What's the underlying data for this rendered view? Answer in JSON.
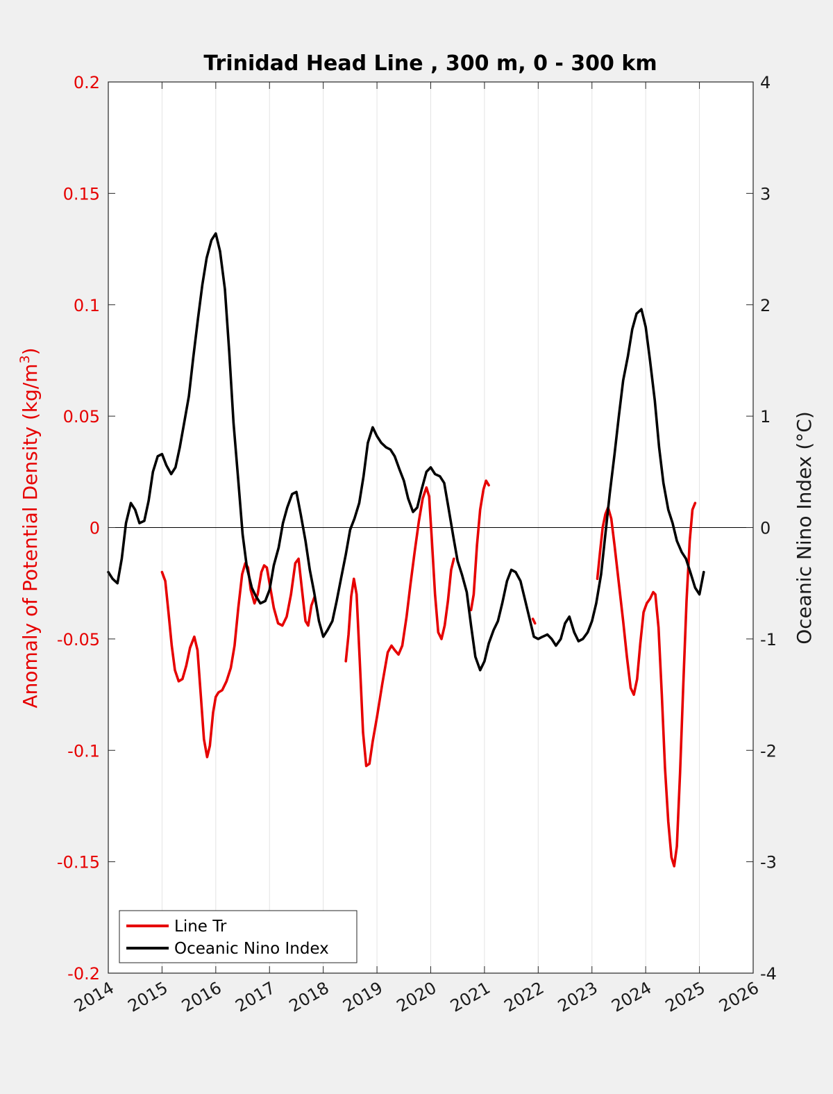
{
  "chart_data": {
    "type": "line",
    "title": "Trinidad Head Line , 300 m, 0 - 300 km",
    "ylabel_left_main": "Anomaly of Potential Density (kg/m",
    "ylabel_left_sup": "3",
    "ylabel_left_close": ")",
    "ylabel_right": "Oceanic Nino Index (°C)",
    "xlim": [
      2014,
      2026
    ],
    "ylim_left": [
      -0.2,
      0.2
    ],
    "ylim_right": [
      -4,
      4
    ],
    "xticks": [
      "2014",
      "2015",
      "2016",
      "2017",
      "2018",
      "2019",
      "2020",
      "2021",
      "2022",
      "2023",
      "2024",
      "2025",
      "2026"
    ],
    "yticks_left": [
      "0.2",
      "0.15",
      "0.1",
      "0.05",
      "0",
      "-0.05",
      "-0.1",
      "-0.15",
      "-0.2"
    ],
    "yticks_right": [
      "4",
      "3",
      "2",
      "1",
      "0",
      "-1",
      "-2",
      "-3",
      "-4"
    ],
    "grid": "vertical",
    "zero_line": true,
    "legend_position": "bottom-left",
    "colors": {
      "line_tr": "#e60000",
      "oni": "#000000"
    },
    "series": [
      {
        "name": "Line Tr",
        "axis": "left",
        "segments": [
          [
            [
              2015.0,
              -0.02
            ],
            [
              2015.06,
              -0.024
            ],
            [
              2015.12,
              -0.038
            ],
            [
              2015.18,
              -0.053
            ],
            [
              2015.24,
              -0.064
            ],
            [
              2015.31,
              -0.069
            ],
            [
              2015.38,
              -0.068
            ],
            [
              2015.45,
              -0.062
            ],
            [
              2015.52,
              -0.054
            ],
            [
              2015.6,
              -0.049
            ],
            [
              2015.66,
              -0.055
            ],
            [
              2015.72,
              -0.075
            ],
            [
              2015.78,
              -0.095
            ],
            [
              2015.84,
              -0.103
            ],
            [
              2015.89,
              -0.098
            ],
            [
              2015.95,
              -0.083
            ],
            [
              2016.0,
              -0.076
            ],
            [
              2016.05,
              -0.074
            ],
            [
              2016.12,
              -0.073
            ],
            [
              2016.2,
              -0.069
            ],
            [
              2016.28,
              -0.063
            ],
            [
              2016.35,
              -0.053
            ],
            [
              2016.42,
              -0.036
            ],
            [
              2016.49,
              -0.021
            ],
            [
              2016.55,
              -0.016
            ],
            [
              2016.6,
              -0.018
            ],
            [
              2016.65,
              -0.028
            ],
            [
              2016.72,
              -0.034
            ],
            [
              2016.78,
              -0.03
            ],
            [
              2016.85,
              -0.02
            ],
            [
              2016.9,
              -0.017
            ],
            [
              2016.95,
              -0.018
            ],
            [
              2017.0,
              -0.025
            ],
            [
              2017.08,
              -0.036
            ],
            [
              2017.16,
              -0.043
            ],
            [
              2017.24,
              -0.044
            ],
            [
              2017.32,
              -0.04
            ],
            [
              2017.4,
              -0.03
            ],
            [
              2017.48,
              -0.016
            ],
            [
              2017.54,
              -0.014
            ],
            [
              2017.6,
              -0.027
            ],
            [
              2017.67,
              -0.042
            ],
            [
              2017.72,
              -0.044
            ],
            [
              2017.78,
              -0.035
            ],
            [
              2017.84,
              -0.031
            ]
          ],
          [
            [
              2018.42,
              -0.06
            ],
            [
              2018.47,
              -0.048
            ],
            [
              2018.52,
              -0.031
            ],
            [
              2018.57,
              -0.023
            ],
            [
              2018.62,
              -0.03
            ],
            [
              2018.68,
              -0.06
            ],
            [
              2018.74,
              -0.092
            ],
            [
              2018.8,
              -0.107
            ],
            [
              2018.86,
              -0.106
            ],
            [
              2018.92,
              -0.096
            ],
            [
              2019.0,
              -0.085
            ],
            [
              2019.1,
              -0.07
            ],
            [
              2019.2,
              -0.056
            ],
            [
              2019.27,
              -0.053
            ],
            [
              2019.33,
              -0.055
            ],
            [
              2019.4,
              -0.057
            ],
            [
              2019.47,
              -0.053
            ],
            [
              2019.55,
              -0.04
            ],
            [
              2019.62,
              -0.026
            ],
            [
              2019.7,
              -0.011
            ],
            [
              2019.78,
              0.003
            ],
            [
              2019.85,
              0.013
            ],
            [
              2019.92,
              0.018
            ],
            [
              2019.97,
              0.014
            ],
            [
              2020.02,
              -0.005
            ],
            [
              2020.08,
              -0.03
            ],
            [
              2020.14,
              -0.047
            ],
            [
              2020.2,
              -0.05
            ],
            [
              2020.26,
              -0.044
            ],
            [
              2020.32,
              -0.033
            ],
            [
              2020.38,
              -0.019
            ],
            [
              2020.43,
              -0.014
            ]
          ],
          [
            [
              2020.75,
              -0.037
            ],
            [
              2020.8,
              -0.03
            ],
            [
              2020.86,
              -0.008
            ],
            [
              2020.92,
              0.008
            ],
            [
              2020.98,
              0.017
            ],
            [
              2021.03,
              0.021
            ],
            [
              2021.08,
              0.019
            ]
          ],
          [
            [
              2021.9,
              -0.041
            ],
            [
              2021.94,
              -0.043
            ]
          ],
          [
            [
              2023.1,
              -0.023
            ],
            [
              2023.15,
              -0.011
            ],
            [
              2023.2,
              0.0
            ],
            [
              2023.25,
              0.006
            ],
            [
              2023.3,
              0.009
            ],
            [
              2023.36,
              0.004
            ],
            [
              2023.42,
              -0.008
            ],
            [
              2023.5,
              -0.025
            ],
            [
              2023.58,
              -0.042
            ],
            [
              2023.65,
              -0.058
            ],
            [
              2023.72,
              -0.072
            ],
            [
              2023.78,
              -0.075
            ],
            [
              2023.84,
              -0.068
            ],
            [
              2023.9,
              -0.052
            ],
            [
              2023.96,
              -0.038
            ],
            [
              2024.02,
              -0.034
            ],
            [
              2024.08,
              -0.032
            ],
            [
              2024.14,
              -0.029
            ],
            [
              2024.18,
              -0.03
            ],
            [
              2024.24,
              -0.045
            ],
            [
              2024.3,
              -0.075
            ],
            [
              2024.36,
              -0.108
            ],
            [
              2024.42,
              -0.132
            ],
            [
              2024.48,
              -0.148
            ],
            [
              2024.53,
              -0.152
            ],
            [
              2024.58,
              -0.143
            ],
            [
              2024.64,
              -0.11
            ],
            [
              2024.7,
              -0.07
            ],
            [
              2024.76,
              -0.033
            ],
            [
              2024.82,
              -0.006
            ],
            [
              2024.87,
              0.008
            ],
            [
              2024.92,
              0.011
            ]
          ]
        ]
      },
      {
        "name": "Oceanic Nino Index",
        "axis": "right",
        "segments": [
          [
            [
              2014.0,
              -0.4
            ],
            [
              2014.08,
              -0.46
            ],
            [
              2014.17,
              -0.5
            ],
            [
              2014.25,
              -0.28
            ],
            [
              2014.33,
              0.04
            ],
            [
              2014.42,
              0.22
            ],
            [
              2014.5,
              0.16
            ],
            [
              2014.58,
              0.04
            ],
            [
              2014.67,
              0.06
            ],
            [
              2014.75,
              0.24
            ],
            [
              2014.83,
              0.5
            ],
            [
              2014.92,
              0.64
            ],
            [
              2015.0,
              0.66
            ],
            [
              2015.08,
              0.56
            ],
            [
              2015.17,
              0.48
            ],
            [
              2015.25,
              0.54
            ],
            [
              2015.33,
              0.72
            ],
            [
              2015.42,
              0.96
            ],
            [
              2015.5,
              1.18
            ],
            [
              2015.58,
              1.52
            ],
            [
              2015.67,
              1.88
            ],
            [
              2015.75,
              2.18
            ],
            [
              2015.83,
              2.42
            ],
            [
              2015.92,
              2.58
            ],
            [
              2016.0,
              2.64
            ],
            [
              2016.08,
              2.48
            ],
            [
              2016.17,
              2.14
            ],
            [
              2016.25,
              1.58
            ],
            [
              2016.33,
              0.94
            ],
            [
              2016.42,
              0.42
            ],
            [
              2016.5,
              -0.06
            ],
            [
              2016.58,
              -0.36
            ],
            [
              2016.67,
              -0.54
            ],
            [
              2016.75,
              -0.62
            ],
            [
              2016.83,
              -0.68
            ],
            [
              2016.92,
              -0.66
            ],
            [
              2017.0,
              -0.56
            ],
            [
              2017.08,
              -0.34
            ],
            [
              2017.17,
              -0.18
            ],
            [
              2017.25,
              0.04
            ],
            [
              2017.33,
              0.18
            ],
            [
              2017.42,
              0.3
            ],
            [
              2017.5,
              0.32
            ],
            [
              2017.58,
              0.12
            ],
            [
              2017.67,
              -0.12
            ],
            [
              2017.75,
              -0.38
            ],
            [
              2017.83,
              -0.58
            ],
            [
              2017.92,
              -0.84
            ],
            [
              2018.0,
              -0.98
            ],
            [
              2018.08,
              -0.92
            ],
            [
              2018.17,
              -0.84
            ],
            [
              2018.25,
              -0.66
            ],
            [
              2018.33,
              -0.46
            ],
            [
              2018.42,
              -0.24
            ],
            [
              2018.5,
              -0.02
            ],
            [
              2018.58,
              0.08
            ],
            [
              2018.67,
              0.22
            ],
            [
              2018.75,
              0.46
            ],
            [
              2018.83,
              0.76
            ],
            [
              2018.92,
              0.9
            ],
            [
              2019.0,
              0.82
            ],
            [
              2019.08,
              0.76
            ],
            [
              2019.17,
              0.72
            ],
            [
              2019.25,
              0.7
            ],
            [
              2019.33,
              0.64
            ],
            [
              2019.42,
              0.52
            ],
            [
              2019.5,
              0.42
            ],
            [
              2019.58,
              0.26
            ],
            [
              2019.67,
              0.14
            ],
            [
              2019.75,
              0.18
            ],
            [
              2019.83,
              0.34
            ],
            [
              2019.92,
              0.5
            ],
            [
              2020.0,
              0.54
            ],
            [
              2020.08,
              0.48
            ],
            [
              2020.17,
              0.46
            ],
            [
              2020.25,
              0.4
            ],
            [
              2020.33,
              0.18
            ],
            [
              2020.42,
              -0.08
            ],
            [
              2020.5,
              -0.3
            ],
            [
              2020.58,
              -0.42
            ],
            [
              2020.67,
              -0.58
            ],
            [
              2020.75,
              -0.88
            ],
            [
              2020.83,
              -1.16
            ],
            [
              2020.92,
              -1.28
            ],
            [
              2021.0,
              -1.2
            ],
            [
              2021.08,
              -1.04
            ],
            [
              2021.17,
              -0.92
            ],
            [
              2021.25,
              -0.84
            ],
            [
              2021.33,
              -0.68
            ],
            [
              2021.42,
              -0.48
            ],
            [
              2021.5,
              -0.38
            ],
            [
              2021.58,
              -0.4
            ],
            [
              2021.67,
              -0.48
            ],
            [
              2021.75,
              -0.64
            ],
            [
              2021.83,
              -0.8
            ],
            [
              2021.92,
              -0.98
            ],
            [
              2022.0,
              -1.0
            ],
            [
              2022.08,
              -0.98
            ],
            [
              2022.17,
              -0.96
            ],
            [
              2022.25,
              -1.0
            ],
            [
              2022.33,
              -1.06
            ],
            [
              2022.42,
              -1.0
            ],
            [
              2022.5,
              -0.86
            ],
            [
              2022.58,
              -0.8
            ],
            [
              2022.67,
              -0.94
            ],
            [
              2022.75,
              -1.02
            ],
            [
              2022.83,
              -1.0
            ],
            [
              2022.92,
              -0.94
            ],
            [
              2023.0,
              -0.84
            ],
            [
              2023.08,
              -0.68
            ],
            [
              2023.17,
              -0.42
            ],
            [
              2023.25,
              -0.06
            ],
            [
              2023.33,
              0.3
            ],
            [
              2023.42,
              0.66
            ],
            [
              2023.5,
              1.0
            ],
            [
              2023.58,
              1.32
            ],
            [
              2023.67,
              1.54
            ],
            [
              2023.75,
              1.78
            ],
            [
              2023.83,
              1.92
            ],
            [
              2023.92,
              1.96
            ],
            [
              2024.0,
              1.8
            ],
            [
              2024.08,
              1.5
            ],
            [
              2024.17,
              1.14
            ],
            [
              2024.25,
              0.72
            ],
            [
              2024.33,
              0.4
            ],
            [
              2024.42,
              0.16
            ],
            [
              2024.5,
              0.04
            ],
            [
              2024.58,
              -0.12
            ],
            [
              2024.67,
              -0.22
            ],
            [
              2024.75,
              -0.28
            ],
            [
              2024.83,
              -0.4
            ],
            [
              2024.92,
              -0.54
            ],
            [
              2025.0,
              -0.6
            ],
            [
              2025.08,
              -0.4
            ]
          ]
        ]
      }
    ]
  }
}
